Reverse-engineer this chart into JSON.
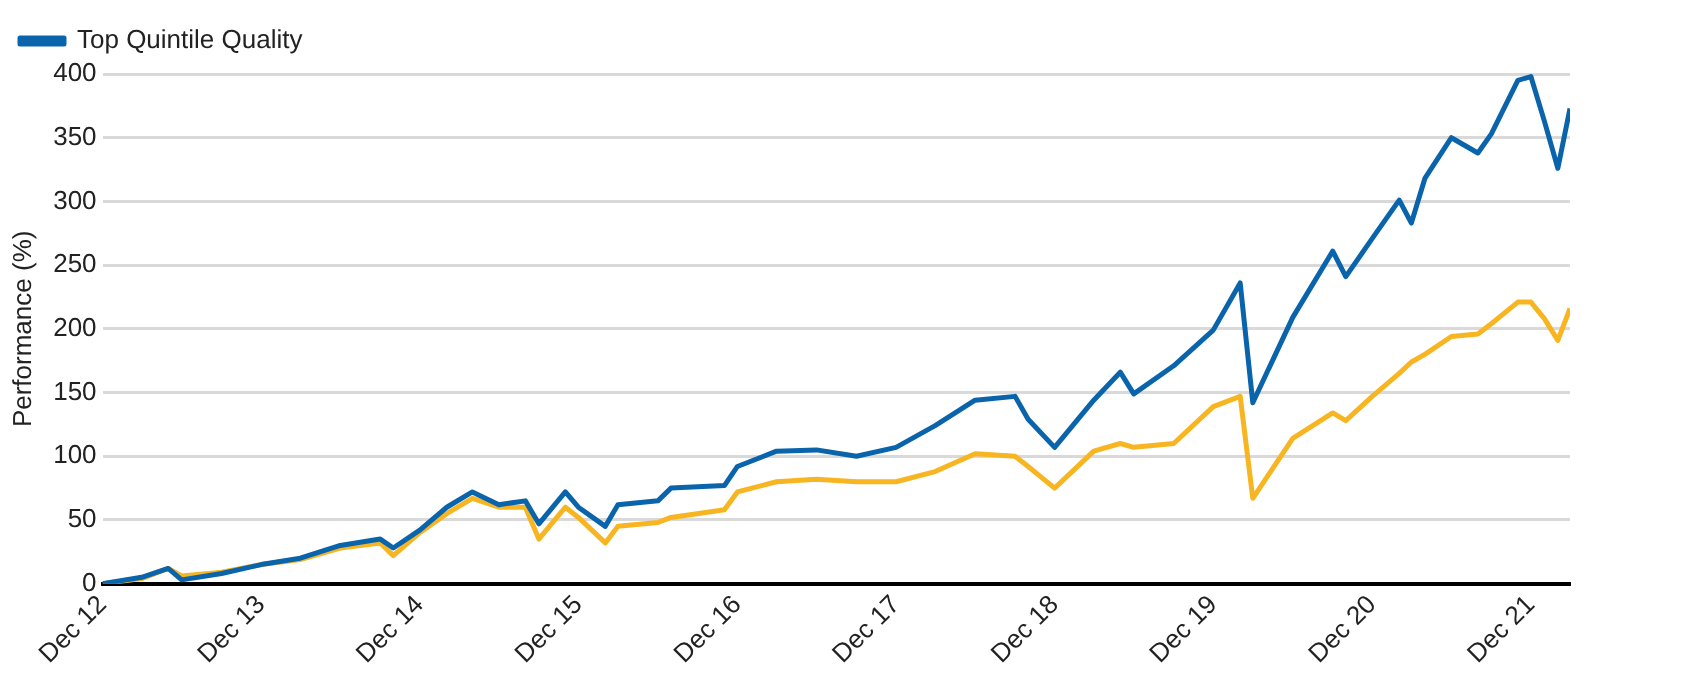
{
  "chart_data": {
    "type": "line",
    "ylabel": "Performance (%)",
    "x": [
      "2012-12",
      "2013-03",
      "2013-05",
      "2013-06",
      "2013-09",
      "2013-12",
      "2014-03",
      "2014-06",
      "2014-09",
      "2014-10",
      "2014-12",
      "2015-02",
      "2015-04",
      "2015-06",
      "2015-08",
      "2015-09",
      "2015-11",
      "2015-12",
      "2016-02",
      "2016-03",
      "2016-06",
      "2016-07",
      "2016-11",
      "2016-12",
      "2017-03",
      "2017-06",
      "2017-09",
      "2017-12",
      "2018-03",
      "2018-06",
      "2018-09",
      "2018-10",
      "2018-12",
      "2019-03",
      "2019-05",
      "2019-06",
      "2019-09",
      "2019-12",
      "2020-02",
      "2020-03",
      "2020-06",
      "2020-09",
      "2020-10",
      "2020-12",
      "2021-02",
      "2021-03",
      "2021-04",
      "2021-06",
      "2021-08",
      "2021-09",
      "2021-11",
      "2021-12",
      "2022-01",
      "2022-02",
      "2022-03"
    ],
    "series": [
      {
        "name": "Top Quintile Quality",
        "color": "#0a64ac",
        "values": [
          0,
          5,
          12,
          3,
          8,
          15,
          20,
          30,
          35,
          28,
          42,
          60,
          72,
          62,
          65,
          47,
          72,
          60,
          45,
          62,
          65,
          75,
          77,
          92,
          104,
          105,
          100,
          107,
          124,
          144,
          147,
          129,
          107,
          144,
          166,
          149,
          171,
          199,
          236,
          142,
          209,
          261,
          241,
          271,
          301,
          283,
          318,
          350,
          338,
          353,
          395,
          398,
          363,
          326,
          373
        ]
      },
      {
        "color": "#f7b522",
        "values": [
          0,
          4,
          12,
          6,
          9,
          15,
          19,
          28,
          32,
          22,
          40,
          55,
          67,
          60,
          60,
          35,
          60,
          52,
          32,
          45,
          48,
          52,
          58,
          72,
          80,
          82,
          80,
          80,
          88,
          102,
          100,
          92,
          75,
          104,
          110,
          107,
          110,
          139,
          147,
          67,
          114,
          134,
          128,
          147,
          165,
          174,
          180,
          194,
          196,
          204,
          221,
          221,
          208,
          191,
          216
        ]
      }
    ],
    "xlim": [
      "2012-12",
      "2022-03"
    ],
    "xticks": [
      {
        "value": "2012-12",
        "label": "Dec 12"
      },
      {
        "value": "2013-12",
        "label": "Dec 13"
      },
      {
        "value": "2014-12",
        "label": "Dec 14"
      },
      {
        "value": "2015-12",
        "label": "Dec 15"
      },
      {
        "value": "2016-12",
        "label": "Dec 16"
      },
      {
        "value": "2017-12",
        "label": "Dec 17"
      },
      {
        "value": "2018-12",
        "label": "Dec 18"
      },
      {
        "value": "2019-12",
        "label": "Dec 19"
      },
      {
        "value": "2020-12",
        "label": "Dec 20"
      },
      {
        "value": "2021-12",
        "label": "Dec 21"
      }
    ],
    "ylim": [
      0,
      400
    ],
    "yticks": [
      0,
      50,
      100,
      150,
      200,
      250,
      300,
      350,
      400
    ],
    "grid": "y",
    "legend": "top left",
    "marker": "none",
    "line_style": "solid"
  }
}
